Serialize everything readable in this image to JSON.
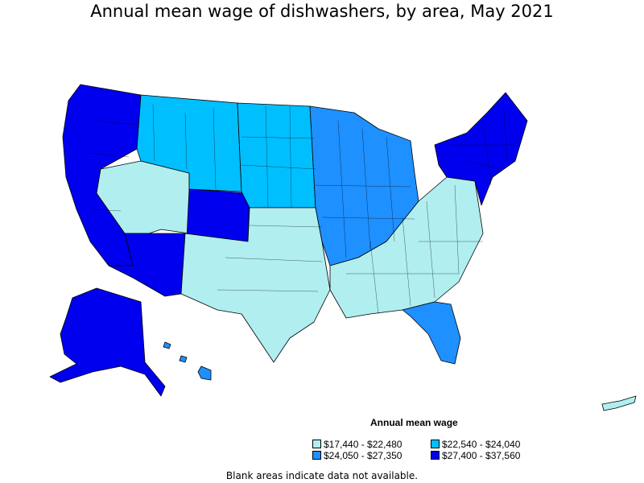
{
  "title": "Annual mean wage of dishwashers, by area, May 2021",
  "legend": {
    "title": "Annual mean wage",
    "items": [
      {
        "label": "$17,440 - $22,480",
        "color": "#b0eef0"
      },
      {
        "label": "$22,540 - $24,040",
        "color": "#00bfff"
      },
      {
        "label": "$24,050 - $27,350",
        "color": "#1e90ff"
      },
      {
        "label": "$27,400 - $37,560",
        "color": "#0000ee"
      }
    ]
  },
  "footnote": "Blank areas indicate data not available.",
  "regions": [
    {
      "name": "west-coast",
      "color": "#0000ee"
    },
    {
      "name": "nevada-utah",
      "color": "#b0eef0"
    },
    {
      "name": "arizona-new-mexico",
      "color": "#0000ee"
    },
    {
      "name": "colorado",
      "color": "#0000ee"
    },
    {
      "name": "northern-rockies",
      "color": "#00bfff"
    },
    {
      "name": "plains",
      "color": "#00bfff"
    },
    {
      "name": "south-central",
      "color": "#b0eef0"
    },
    {
      "name": "midwest",
      "color": "#1e90ff"
    },
    {
      "name": "southeast",
      "color": "#b0eef0"
    },
    {
      "name": "florida",
      "color": "#1e90ff"
    },
    {
      "name": "northeast",
      "color": "#0000ee"
    },
    {
      "name": "alaska",
      "color": "#0000ee"
    },
    {
      "name": "hawaii",
      "color": "#1e90ff"
    },
    {
      "name": "puerto-rico",
      "color": "#b0eef0"
    }
  ]
}
